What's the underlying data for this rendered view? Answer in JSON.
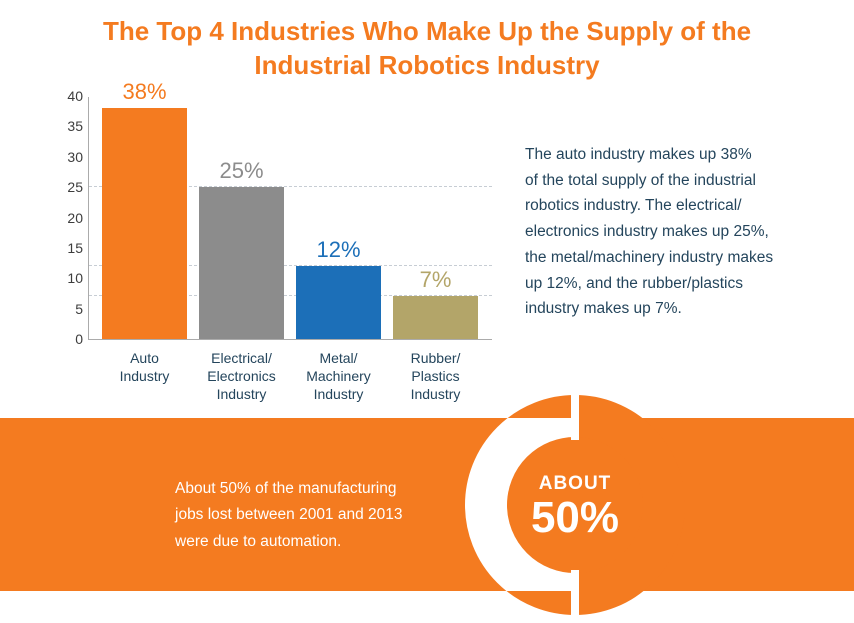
{
  "title": "The Top 4 Industries Who Make Up the Supply of the\nIndustrial Robotics Industry",
  "description": "The auto industry makes up 38%\nof the total supply of the industrial\nrobotics industry. The electrical/\nelectronics industry makes up 25%,\nthe metal/machinery industry makes\nup 12%, and the rubber/plastics\nindustry makes up 7%.",
  "band": {
    "caption": "About 50% of the manufacturing\njobs lost between 2001 and 2013\nwere due to automation."
  },
  "colors": {
    "accent_orange": "#F47B20",
    "bar_gray": "#8C8C8C",
    "bar_blue": "#1C6FB8",
    "bar_tan": "#B3A569",
    "text_navy": "#24455C",
    "axis_line": "#ABABAB",
    "gridline": "#C7CDD4",
    "white": "#FFFFFF"
  },
  "chart_data": [
    {
      "type": "bar",
      "title": "",
      "xlabel": "",
      "ylabel": "",
      "categories": [
        "Auto\nIndustry",
        "Electrical/\nElectronics\nIndustry",
        "Metal/\nMachinery\nIndustry",
        "Rubber/\nPlastics\nIndustry"
      ],
      "values": [
        38,
        25,
        12,
        7
      ],
      "value_labels": [
        "38%",
        "25%",
        "12%",
        "7%"
      ],
      "bar_colors": [
        "#F47B20",
        "#8C8C8C",
        "#1C6FB8",
        "#B3A569"
      ],
      "ylim": [
        0,
        40
      ],
      "yticks": [
        0,
        5,
        10,
        15,
        20,
        25,
        30,
        35,
        40
      ],
      "gridline_values": [
        25,
        12,
        7
      ],
      "grid_style": "dashed",
      "legend": "none"
    },
    {
      "type": "pie",
      "variant": "donut",
      "center_label_top": "ABOUT",
      "center_label_value": "50%",
      "slices": [
        {
          "label": "ABOUT 50%",
          "value": 50,
          "color": "#FFFFFF"
        },
        {
          "label": "",
          "value": 50,
          "color": "#F47B20"
        }
      ]
    }
  ]
}
